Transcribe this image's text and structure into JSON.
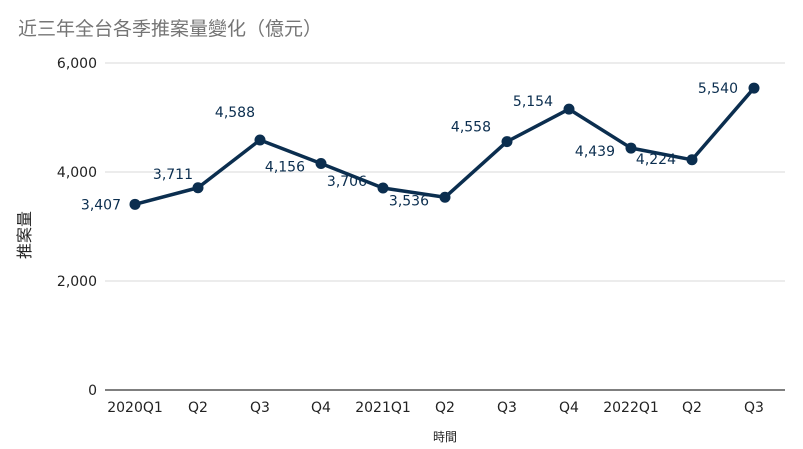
{
  "chart_data": {
    "type": "line",
    "title": "近三年全台各季推案量變化（億元）",
    "xlabel": "時間",
    "ylabel": "推案量",
    "categories": [
      "2020Q1",
      "Q2",
      "Q3",
      "Q4",
      "2021Q1",
      "Q2",
      "Q3",
      "Q4",
      "2022Q1",
      "Q2",
      "Q3"
    ],
    "series": [
      {
        "values": [
          3407,
          3711,
          4588,
          4156,
          3706,
          3536,
          4558,
          5154,
          4439,
          4224,
          5540
        ]
      }
    ],
    "data_labels": [
      "3,407",
      "3,711",
      "4,588",
      "4,156",
      "3,706",
      "3,536",
      "4,558",
      "5,154",
      "4,439",
      "4,224",
      "5,540"
    ],
    "yticks": [
      0,
      2000,
      4000,
      6000
    ],
    "ytick_labels": [
      "0",
      "2,000",
      "4,000",
      "6,000"
    ],
    "ylim": [
      0,
      6000
    ],
    "grid": true,
    "legend": "none",
    "colors": {
      "line": "#0b2e4f",
      "grid": "#d9d9d9",
      "title": "#757575"
    }
  }
}
